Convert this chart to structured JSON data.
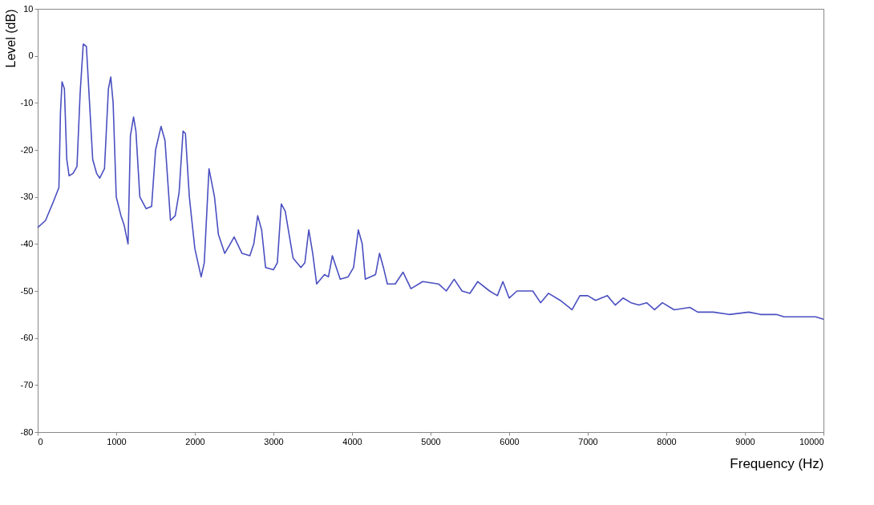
{
  "chart_data": {
    "type": "line",
    "xlabel": "Frequency (Hz)",
    "ylabel": "Level (dB)",
    "x": [
      0,
      100,
      200,
      270,
      290,
      310,
      340,
      370,
      400,
      450,
      500,
      540,
      580,
      620,
      660,
      700,
      750,
      790,
      850,
      900,
      930,
      960,
      1000,
      1060,
      1100,
      1150,
      1180,
      1220,
      1250,
      1300,
      1380,
      1450,
      1500,
      1570,
      1620,
      1690,
      1750,
      1800,
      1850,
      1880,
      1930,
      2000,
      2080,
      2120,
      2180,
      2250,
      2300,
      2380,
      2450,
      2500,
      2600,
      2700,
      2750,
      2800,
      2850,
      2900,
      3000,
      3050,
      3100,
      3150,
      3250,
      3350,
      3400,
      3450,
      3500,
      3550,
      3650,
      3700,
      3750,
      3800,
      3850,
      3950,
      4020,
      4080,
      4130,
      4170,
      4300,
      4350,
      4400,
      4450,
      4550,
      4650,
      4750,
      4900,
      5100,
      5200,
      5300,
      5400,
      5500,
      5600,
      5750,
      5850,
      5920,
      6000,
      6100,
      6300,
      6400,
      6500,
      6650,
      6800,
      6900,
      7000,
      7100,
      7250,
      7350,
      7450,
      7550,
      7650,
      7750,
      7850,
      7950,
      8100,
      8300,
      8400,
      8600,
      8800,
      9050,
      9200,
      9400,
      9500,
      9700,
      9900,
      10000
    ],
    "series": [
      {
        "color": "#4a4fc0",
        "values": [
          -36.5,
          -35,
          -31,
          -28,
          -12,
          -5.5,
          -7,
          -22,
          -25.5,
          -25,
          -23.5,
          -8,
          2.5,
          2,
          -10,
          -22,
          -25,
          -26,
          -24,
          -7,
          -4.5,
          -10,
          -30,
          -34,
          -36,
          -40,
          -17,
          -13,
          -16,
          -30,
          -32.5,
          -32,
          -20,
          -15,
          -18,
          -35,
          -34,
          -29,
          -16,
          -16.5,
          -30,
          -41,
          -47,
          -44,
          -24,
          -30,
          -38,
          -42,
          -40,
          -38.5,
          -42,
          -42.5,
          -40,
          -34,
          -37,
          -45,
          -45.5,
          -44,
          -31.5,
          -33,
          -43,
          -45,
          -44,
          -37,
          -42,
          -48.5,
          -46.5,
          -47,
          -42.5,
          -45,
          -47.5,
          -47,
          -45,
          -37,
          -40,
          -47.5,
          -46.5,
          -42,
          -45,
          -48.5,
          -48.5,
          -46,
          -49.5,
          -48,
          -48.5,
          -50,
          -47.5,
          -50,
          -50.5,
          -48,
          -50,
          -51,
          -48,
          -51.5,
          -50,
          -50,
          -52.5,
          -50.5,
          -52,
          -54,
          -51,
          -51,
          -52,
          -51,
          -53,
          -51.5,
          -52.5,
          -53,
          -52.5,
          -54,
          -52.5,
          -54,
          -53.5,
          -54.5,
          -54.5,
          -55,
          -54.5,
          -55,
          -55,
          -55.5,
          -55.5,
          -55.5,
          -56
        ]
      }
    ],
    "xlim": [
      0,
      10000
    ],
    "xticks": [
      0,
      1000,
      2000,
      3000,
      4000,
      5000,
      6000,
      7000,
      8000,
      9000,
      10000
    ],
    "ylim": [
      -80,
      10
    ],
    "yticks": [
      -80,
      -70,
      -60,
      -50,
      -40,
      -30,
      -20,
      -10,
      0,
      10
    ],
    "grid": false,
    "legend": false,
    "marker": "none",
    "line_style": "solid"
  }
}
